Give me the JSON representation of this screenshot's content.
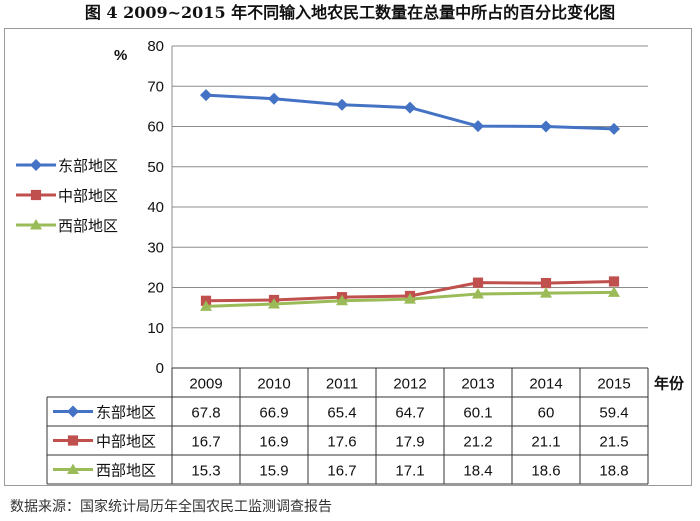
{
  "title": "图 4   2009~2015 年不同输入地农民工数量在总量中所占的百分比变化图",
  "source": "数据来源：国家统计局历年全国农民工监测调查报告",
  "chart_data": {
    "type": "line",
    "title": "图 4   2009~2015 年不同输入地农民工数量在总量中所占的百分比变化图",
    "ylabel": "%",
    "xlabel": "年份",
    "ylim": [
      0,
      80
    ],
    "yticks": [
      0,
      10,
      20,
      30,
      40,
      50,
      60,
      70,
      80
    ],
    "grid": true,
    "legend": "left",
    "categories": [
      "2009",
      "2010",
      "2011",
      "2012",
      "2013",
      "2014",
      "2015"
    ],
    "series": [
      {
        "name": "东部地区",
        "color": "#4472c4",
        "marker": "diamond",
        "values": [
          67.8,
          66.9,
          65.4,
          64.7,
          60.1,
          60,
          59.4
        ]
      },
      {
        "name": "中部地区",
        "color": "#c0504d",
        "marker": "square",
        "values": [
          16.7,
          16.9,
          17.6,
          17.9,
          21.2,
          21.1,
          21.5
        ]
      },
      {
        "name": "西部地区",
        "color": "#9bbb59",
        "marker": "triangle",
        "values": [
          15.3,
          15.9,
          16.7,
          17.1,
          18.4,
          18.6,
          18.8
        ]
      }
    ]
  }
}
